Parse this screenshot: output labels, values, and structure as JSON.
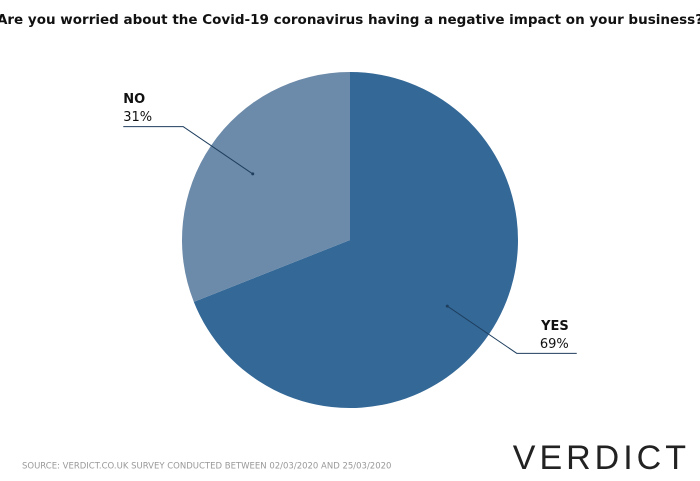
{
  "chart_data": {
    "type": "pie",
    "title": "Are you worried about the Covid-19 coronavirus having a negative impact on your business?",
    "categories": [
      "YES",
      "NO"
    ],
    "values": [
      69,
      31
    ],
    "value_labels": [
      "69%",
      "31%"
    ],
    "colors": [
      "#336897",
      "#6c8aa9"
    ],
    "source": "SOURCE: VERDICT.CO.UK SURVEY CONDUCTED BETWEEN 02/03/2020 AND 25/03/2020",
    "brand": "VERDICT"
  }
}
